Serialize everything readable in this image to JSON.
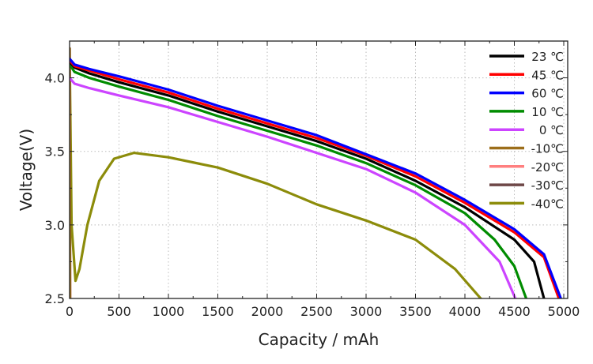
{
  "chart_data": {
    "type": "line",
    "title": "",
    "xlabel": "Capacity / mAh",
    "ylabel": "Voltage(V)",
    "xlim": [
      0,
      5040
    ],
    "ylim": [
      2.5,
      4.25
    ],
    "xticks": [
      0,
      500,
      1000,
      1500,
      2000,
      2500,
      3000,
      3500,
      4000,
      4500,
      5000
    ],
    "yticks": [
      2.5,
      3.0,
      3.5,
      4.0
    ],
    "ytick_labels": [
      "2.5",
      "3.0",
      "3.5",
      "4.0"
    ],
    "grid": true,
    "legend_position": "top-right",
    "series": [
      {
        "name": "23 ℃",
        "color": "#000000",
        "points": [
          [
            0,
            4.11
          ],
          [
            50,
            4.07
          ],
          [
            200,
            4.03
          ],
          [
            500,
            3.97
          ],
          [
            1000,
            3.88
          ],
          [
            1500,
            3.77
          ],
          [
            2000,
            3.67
          ],
          [
            2500,
            3.57
          ],
          [
            3000,
            3.45
          ],
          [
            3500,
            3.3
          ],
          [
            4000,
            3.12
          ],
          [
            4500,
            2.9
          ],
          [
            4700,
            2.75
          ],
          [
            4800,
            2.5
          ]
        ]
      },
      {
        "name": "45 ℃",
        "color": "#ff0000",
        "points": [
          [
            0,
            4.12
          ],
          [
            50,
            4.08
          ],
          [
            200,
            4.05
          ],
          [
            500,
            3.99
          ],
          [
            1000,
            3.9
          ],
          [
            1500,
            3.79
          ],
          [
            2000,
            3.69
          ],
          [
            2500,
            3.59
          ],
          [
            3000,
            3.47
          ],
          [
            3500,
            3.33
          ],
          [
            4000,
            3.15
          ],
          [
            4500,
            2.95
          ],
          [
            4800,
            2.78
          ],
          [
            4950,
            2.5
          ]
        ]
      },
      {
        "name": "60 ℃",
        "color": "#0000ff",
        "points": [
          [
            0,
            4.13
          ],
          [
            50,
            4.09
          ],
          [
            200,
            4.06
          ],
          [
            500,
            4.01
          ],
          [
            1000,
            3.92
          ],
          [
            1500,
            3.81
          ],
          [
            2000,
            3.71
          ],
          [
            2500,
            3.61
          ],
          [
            3000,
            3.48
          ],
          [
            3500,
            3.35
          ],
          [
            4000,
            3.17
          ],
          [
            4500,
            2.97
          ],
          [
            4800,
            2.8
          ],
          [
            4970,
            2.5
          ]
        ]
      },
      {
        "name": "10 ℃",
        "color": "#008c00",
        "points": [
          [
            0,
            4.09
          ],
          [
            50,
            4.04
          ],
          [
            200,
            4.0
          ],
          [
            500,
            3.94
          ],
          [
            1000,
            3.85
          ],
          [
            1500,
            3.74
          ],
          [
            2000,
            3.64
          ],
          [
            2500,
            3.54
          ],
          [
            3000,
            3.42
          ],
          [
            3500,
            3.27
          ],
          [
            4000,
            3.08
          ],
          [
            4300,
            2.9
          ],
          [
            4500,
            2.72
          ],
          [
            4620,
            2.5
          ]
        ]
      },
      {
        "name": "0 ℃",
        "color": "#cc44ff",
        "points": [
          [
            0,
            4.0
          ],
          [
            50,
            3.96
          ],
          [
            200,
            3.93
          ],
          [
            500,
            3.88
          ],
          [
            1000,
            3.8
          ],
          [
            1500,
            3.7
          ],
          [
            2000,
            3.6
          ],
          [
            2500,
            3.49
          ],
          [
            3000,
            3.38
          ],
          [
            3500,
            3.22
          ],
          [
            4000,
            3.0
          ],
          [
            4350,
            2.75
          ],
          [
            4510,
            2.5
          ]
        ]
      },
      {
        "name": "-10℃",
        "color": "#9c6e1a",
        "points": [
          [
            0,
            4.2
          ],
          [
            5,
            2.5
          ]
        ]
      },
      {
        "name": "-20℃",
        "color": "#ff7f7f",
        "points": [
          [
            0,
            4.2
          ],
          [
            5,
            2.5
          ]
        ]
      },
      {
        "name": "-30℃",
        "color": "#6e4848",
        "points": [
          [
            0,
            4.2
          ],
          [
            5,
            2.5
          ]
        ]
      },
      {
        "name": "-40℃",
        "color": "#8c8c0a",
        "points": [
          [
            0,
            4.2
          ],
          [
            20,
            3.0
          ],
          [
            60,
            2.62
          ],
          [
            100,
            2.7
          ],
          [
            180,
            3.0
          ],
          [
            300,
            3.3
          ],
          [
            450,
            3.45
          ],
          [
            650,
            3.49
          ],
          [
            1000,
            3.46
          ],
          [
            1500,
            3.39
          ],
          [
            2000,
            3.28
          ],
          [
            2500,
            3.14
          ],
          [
            3000,
            3.03
          ],
          [
            3500,
            2.9
          ],
          [
            3900,
            2.7
          ],
          [
            4160,
            2.5
          ]
        ]
      }
    ]
  }
}
